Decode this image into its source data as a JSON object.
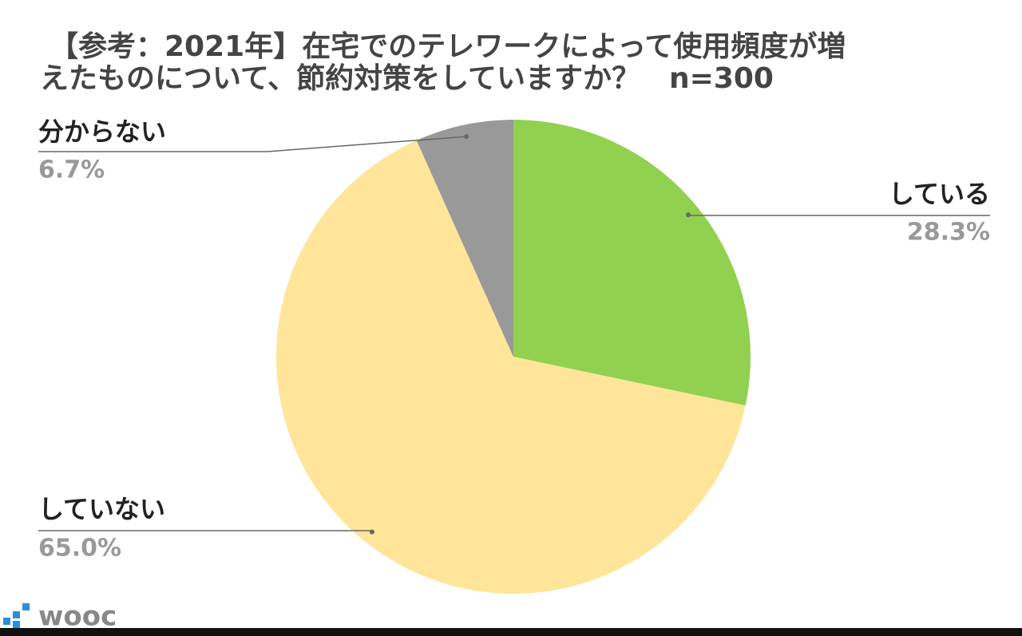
{
  "chart_data": {
    "type": "pie",
    "title": [
      "【参考：2021年】在宅でのテレワークによって使用頻度が増",
      "えたものについて、節約対策をしていますか？　n=300"
    ],
    "categories": [
      "している",
      "していない",
      "分からない"
    ],
    "values": [
      28.3,
      65.0,
      6.7
    ],
    "value_labels": [
      "28.3%",
      "65.0%",
      "6.7%"
    ],
    "colors": [
      "#92d050",
      "#fee599",
      "#999999"
    ]
  },
  "logo": "wooc"
}
